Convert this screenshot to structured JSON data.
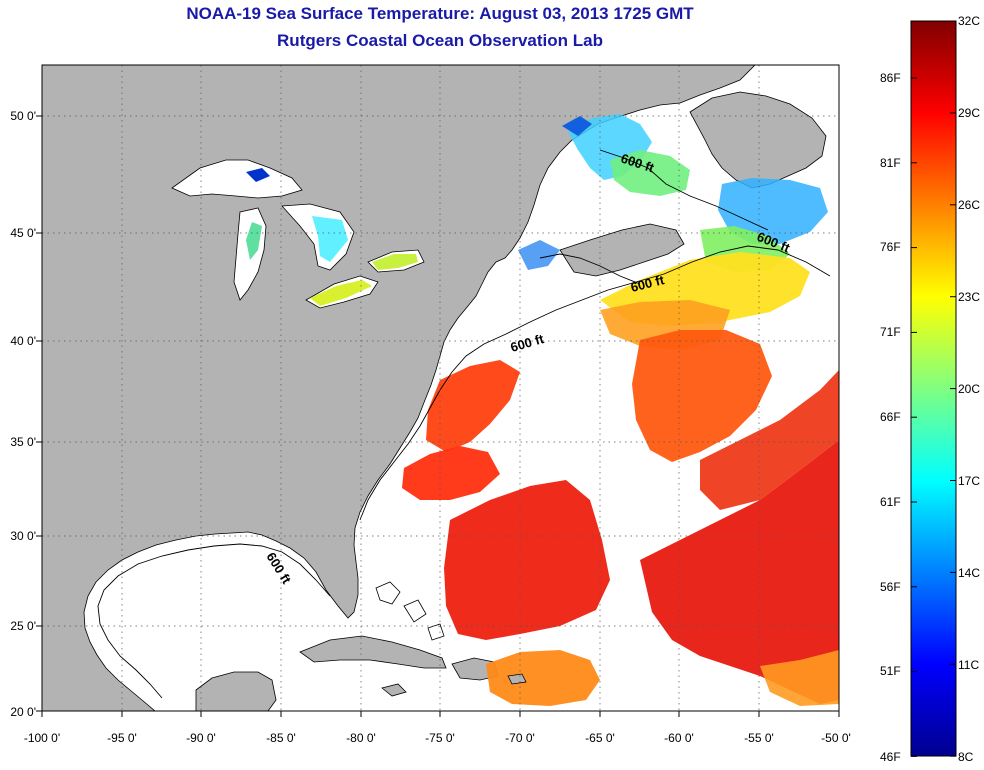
{
  "titles": {
    "line1": "NOAA-19 Sea Surface Temperature:  August 03, 2013 1725 GMT",
    "line2": "Rutgers Coastal Ocean Observation Lab"
  },
  "map": {
    "lon_ticks": [
      "-100 0'",
      "-95 0'",
      "-90 0'",
      "-85 0'",
      "-80 0'",
      "-75 0'",
      "-70 0'",
      "-65 0'",
      "-60 0'",
      "-55 0'",
      "-50 0'"
    ],
    "lat_ticks": [
      "50 0'",
      "45 0'",
      "40 0'",
      "35 0'",
      "30 0'",
      "25 0'",
      "20 0'"
    ],
    "contour_labels": [
      "600 ft",
      "600 ft",
      "600 ft",
      "600 ft",
      "600 ft"
    ],
    "colors": {
      "land": "#b3b3b3",
      "cloud": "#ffffff",
      "grid": "#555555"
    }
  },
  "colorbar": {
    "celsius": [
      "32C",
      "29C",
      "26C",
      "23C",
      "20C",
      "17C",
      "14C",
      "11C",
      "8C"
    ],
    "fahrenheit": [
      "86F",
      "81F",
      "76F",
      "71F",
      "66F",
      "61F",
      "56F",
      "51F",
      "46F"
    ],
    "stops": [
      "#00008f",
      "#0000ff",
      "#0080ff",
      "#00ffff",
      "#80ff80",
      "#ffff00",
      "#ff8000",
      "#ff0000",
      "#800000"
    ]
  }
}
